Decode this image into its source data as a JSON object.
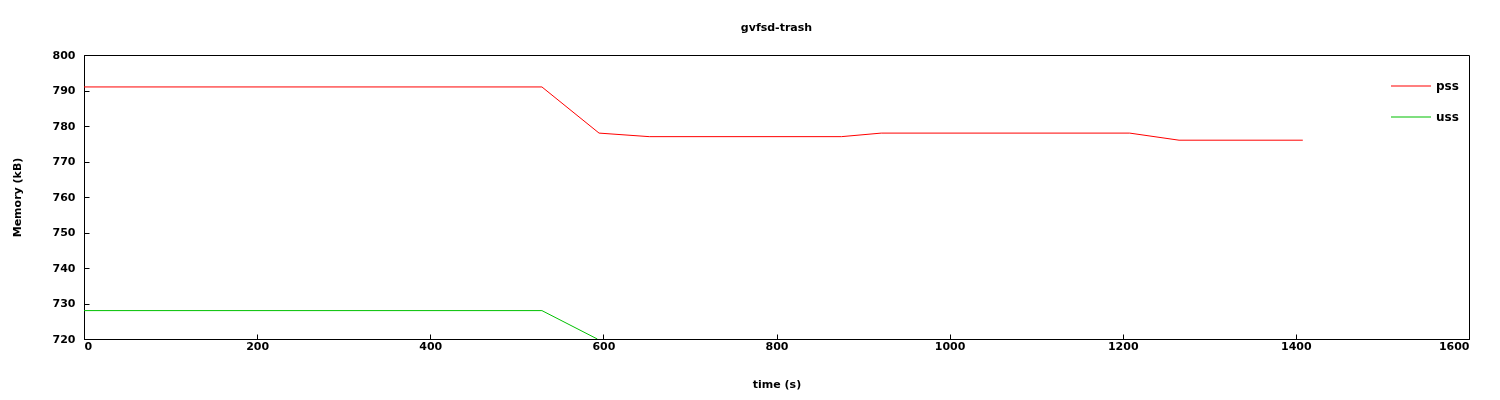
{
  "chart_data": {
    "type": "line",
    "title": "gvfsd-trash",
    "xlabel": "time (s)",
    "ylabel": "Memory (kB)",
    "xlim": [
      0,
      1600
    ],
    "xticks": [
      0,
      200,
      400,
      600,
      800,
      1000,
      1200,
      1400,
      1600
    ],
    "ylim": [
      720,
      800
    ],
    "yticks": [
      720,
      730,
      740,
      750,
      760,
      770,
      780,
      790,
      800
    ],
    "grid": false,
    "legend": "top right",
    "series": [
      {
        "name": "pss",
        "color": "#ff0000",
        "x": [
          0,
          529,
          595,
          653,
          875,
          921,
          1208,
          1265,
          1408
        ],
        "values": [
          791,
          791,
          778,
          777,
          777,
          778,
          778,
          776,
          776
        ]
      },
      {
        "name": "uss",
        "color": "#00c000",
        "x": [
          0,
          529,
          593
        ],
        "values": [
          728,
          728,
          720
        ]
      }
    ]
  }
}
